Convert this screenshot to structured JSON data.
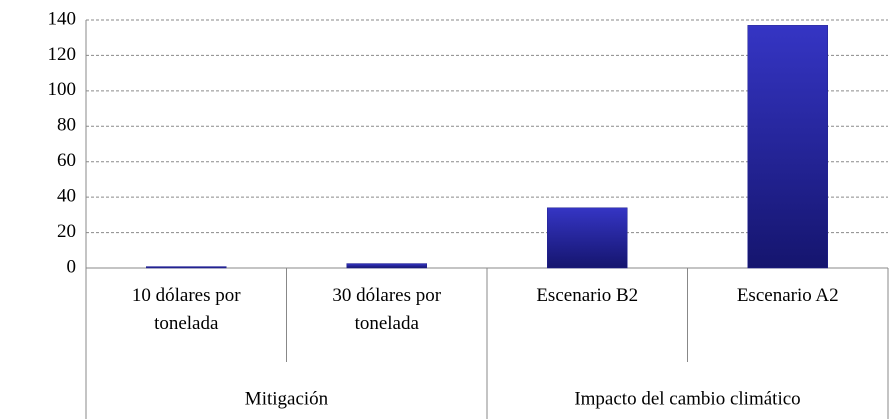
{
  "chart_data": {
    "type": "bar",
    "categories": [
      "10 dólares por tonelada",
      "30 dólares por tonelada",
      "Escenario B2",
      "Escenario A2"
    ],
    "values": [
      0.8,
      2.5,
      34,
      137
    ],
    "groups": [
      {
        "name": "Mitigación",
        "span": 2
      },
      {
        "name": "Impacto del cambio climático",
        "span": 2
      }
    ],
    "color": "#22228f",
    "ylim": [
      0,
      140
    ],
    "yticks": [
      0,
      20,
      40,
      60,
      80,
      100,
      120,
      140
    ],
    "grid": true
  }
}
